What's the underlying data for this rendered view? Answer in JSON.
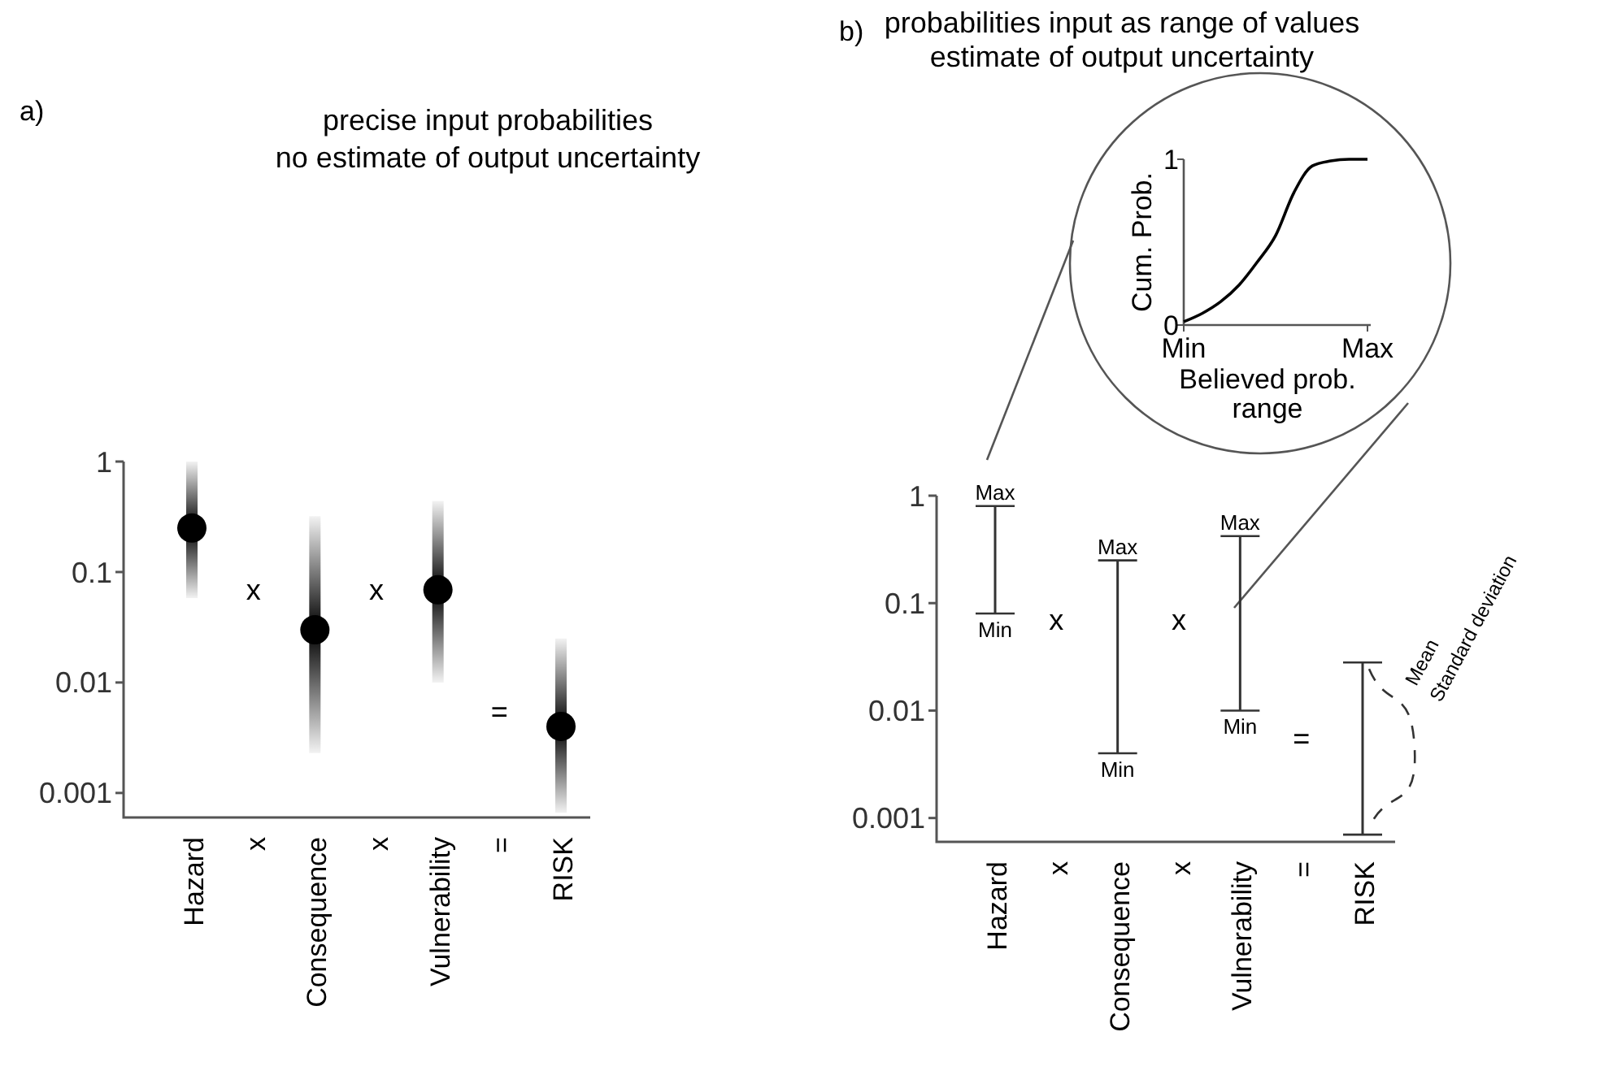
{
  "chart_data": [
    {
      "type": "scatter",
      "title": "precise input probabilities",
      "subtitle": "no estimate of output uncertainty",
      "categories": [
        "Hazard",
        "x",
        "Consequence",
        "x",
        "Vulnerability",
        "=",
        "RISK"
      ],
      "series": [
        {
          "color": "#000000",
          "values": [
            0.25,
            null,
            0.03,
            null,
            0.069,
            null,
            0.004
          ],
          "errors": [
            [
              0.058,
              1
            ],
            null,
            [
              0.0023,
              0.32
            ],
            null,
            [
              0.01,
              0.44
            ],
            null,
            [
              0.00066,
              0.025
            ]
          ]
        }
      ],
      "log": "y",
      "ylim": [
        0.0006,
        1
      ],
      "yticks": [
        1,
        0.1,
        0.01,
        0.001
      ],
      "marker": "circle",
      "annotations": [
        "a)",
        "x",
        "x",
        "="
      ]
    },
    {
      "type": "bar",
      "categories": [
        "Hazard",
        "x",
        "Consequence",
        "x",
        "Vulnerability",
        "=",
        "RISK"
      ],
      "series": [
        {
          "color": "#333333",
          "base": [
            0.08,
            null,
            0.004,
            null,
            0.01,
            null,
            0.0007
          ],
          "values": [
            0.72,
            null,
            0.246,
            null,
            0.41,
            null,
            0.0273
          ]
        }
      ],
      "log": "y",
      "ylim": [
        0.0006,
        1
      ],
      "yticks": [
        1,
        0.1,
        0.01,
        0.001
      ],
      "annotations": [
        "b)",
        "x",
        "x",
        "=",
        "Mean",
        "Standard deviation",
        {
          "text": "Max",
          "x": "Hazard",
          "y": 0.8
        },
        {
          "text": "Min",
          "x": "Hazard",
          "y": 0.08
        },
        {
          "text": "Max",
          "x": "Consequence",
          "y": 0.25
        },
        {
          "text": "Min",
          "x": "Consequence",
          "y": 0.004
        },
        {
          "text": "Max",
          "x": "Vulnerability",
          "y": 0.42
        },
        {
          "text": "Min",
          "x": "Vulnerability",
          "y": 0.01
        }
      ]
    },
    {
      "type": "line",
      "title": "probabilities input as range of values",
      "subtitle": "estimate of output uncertainty",
      "xlabel": "Believed prob. range",
      "ylabel": "Cum. Prob.",
      "categories": [
        "Min",
        null,
        null,
        null,
        null,
        null,
        null,
        null,
        null,
        null,
        "Max"
      ],
      "series": [
        {
          "color": "#000000",
          "values": [
            0.02,
            0.07,
            0.14,
            0.24,
            0.38,
            0.54,
            0.8,
            0.96,
            0.99,
            1,
            1
          ]
        }
      ],
      "ylim": [
        0,
        1
      ],
      "yticks": [
        0,
        1
      ],
      "marker": "none"
    }
  ]
}
